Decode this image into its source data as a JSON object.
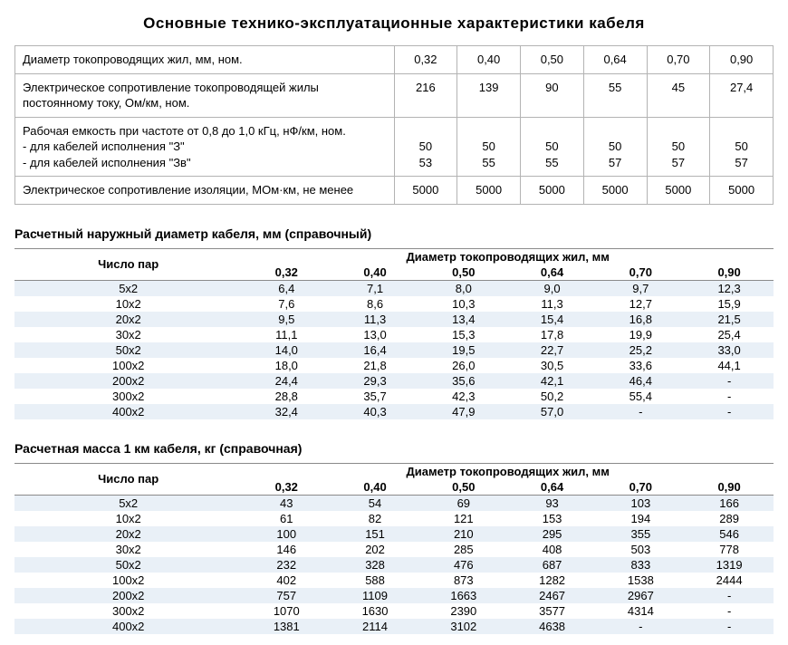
{
  "title": "Основные  технико-эксплуатационные  характеристики  кабеля",
  "colors": {
    "stripe": "#e9f0f7",
    "border": "#b3b3b3",
    "text": "#000000",
    "background": "#ffffff"
  },
  "t1": {
    "rows": [
      {
        "label": "Диаметр токопроводящих жил, мм, ном.",
        "v": [
          "0,32",
          "0,40",
          "0,50",
          "0,64",
          "0,70",
          "0,90"
        ]
      },
      {
        "label": "Электрическое сопротивление токопроводящей жилы постоянному току, Ом/км, ном.",
        "v": [
          "216",
          "139",
          "90",
          "55",
          "45",
          "27,4"
        ]
      },
      {
        "label": "Рабочая емкость  при  частоте  от 0,8 до 1,0 кГц, нФ/км,  ном.\n- для кабелей исполнения \"З\"\n- для кабелей исполнения \"Зв\"",
        "v": [
          "\n50\n53",
          "\n50\n55",
          "\n50\n55",
          "\n50\n57",
          "\n50\n57",
          "\n50\n57"
        ]
      },
      {
        "label": "Электрическое сопротивление изоляции, МОм·км, не менее",
        "v": [
          "5000",
          "5000",
          "5000",
          "5000",
          "5000",
          "5000"
        ]
      }
    ]
  },
  "t2": {
    "title": "Расчетный наружный диаметр кабеля, мм (справочный)",
    "pairs_label": "Число пар",
    "group_label": "Диаметр токопроводящих жил, мм",
    "cols": [
      "0,32",
      "0,40",
      "0,50",
      "0,64",
      "0,70",
      "0,90"
    ],
    "rows": [
      {
        "p": "5x2",
        "v": [
          "6,4",
          "7,1",
          "8,0",
          "9,0",
          "9,7",
          "12,3"
        ]
      },
      {
        "p": "10x2",
        "v": [
          "7,6",
          "8,6",
          "10,3",
          "11,3",
          "12,7",
          "15,9"
        ]
      },
      {
        "p": "20x2",
        "v": [
          "9,5",
          "11,3",
          "13,4",
          "15,4",
          "16,8",
          "21,5"
        ]
      },
      {
        "p": "30x2",
        "v": [
          "11,1",
          "13,0",
          "15,3",
          "17,8",
          "19,9",
          "25,4"
        ]
      },
      {
        "p": "50x2",
        "v": [
          "14,0",
          "16,4",
          "19,5",
          "22,7",
          "25,2",
          "33,0"
        ]
      },
      {
        "p": "100x2",
        "v": [
          "18,0",
          "21,8",
          "26,0",
          "30,5",
          "33,6",
          "44,1"
        ]
      },
      {
        "p": "200x2",
        "v": [
          "24,4",
          "29,3",
          "35,6",
          "42,1",
          "46,4",
          "-"
        ]
      },
      {
        "p": "300x2",
        "v": [
          "28,8",
          "35,7",
          "42,3",
          "50,2",
          "55,4",
          "-"
        ]
      },
      {
        "p": "400x2",
        "v": [
          "32,4",
          "40,3",
          "47,9",
          "57,0",
          "-",
          "-"
        ]
      }
    ]
  },
  "t3": {
    "title": "Расчетная масса 1 км кабеля, кг (справочная)",
    "pairs_label": "Число пар",
    "group_label": "Диаметр токопроводящих жил, мм",
    "cols": [
      "0,32",
      "0,40",
      "0,50",
      "0,64",
      "0,70",
      "0,90"
    ],
    "rows": [
      {
        "p": "5x2",
        "v": [
          "43",
          "54",
          "69",
          "93",
          "103",
          "166"
        ]
      },
      {
        "p": "10x2",
        "v": [
          "61",
          "82",
          "121",
          "153",
          "194",
          "289"
        ]
      },
      {
        "p": "20x2",
        "v": [
          "100",
          "151",
          "210",
          "295",
          "355",
          "546"
        ]
      },
      {
        "p": "30x2",
        "v": [
          "146",
          "202",
          "285",
          "408",
          "503",
          "778"
        ]
      },
      {
        "p": "50x2",
        "v": [
          "232",
          "328",
          "476",
          "687",
          "833",
          "1319"
        ]
      },
      {
        "p": "100x2",
        "v": [
          "402",
          "588",
          "873",
          "1282",
          "1538",
          "2444"
        ]
      },
      {
        "p": "200x2",
        "v": [
          "757",
          "1109",
          "1663",
          "2467",
          "2967",
          "-"
        ]
      },
      {
        "p": "300x2",
        "v": [
          "1070",
          "1630",
          "2390",
          "3577",
          "4314",
          "-"
        ]
      },
      {
        "p": "400x2",
        "v": [
          "1381",
          "2114",
          "3102",
          "4638",
          "-",
          "-"
        ]
      }
    ]
  }
}
